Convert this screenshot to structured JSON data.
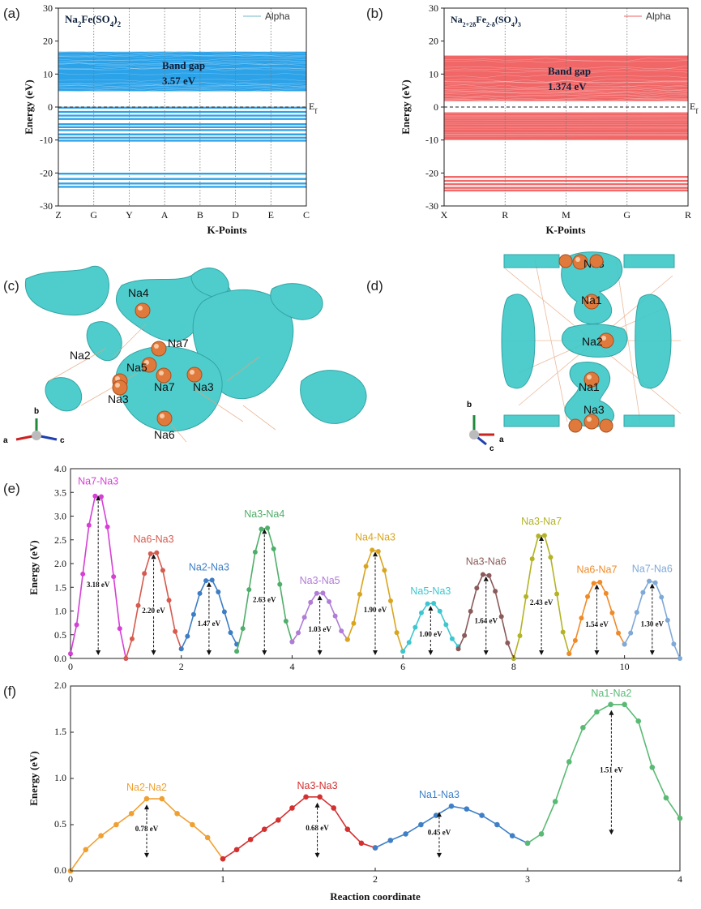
{
  "panels": {
    "a": "(a)",
    "b": "(b)",
    "c": "(c)",
    "d": "(d)",
    "e": "(e)",
    "f": "(f)"
  },
  "chart_data": [
    {
      "id": "a",
      "type": "line",
      "title_parts": [
        "Na",
        "2",
        "Fe(SO",
        "4",
        ")",
        "2"
      ],
      "legend": "Alpha",
      "color": "#1a9ae6",
      "xlabel": "K-Points",
      "ylabel": "Energy (eV)",
      "ylim": [
        -30,
        30
      ],
      "yticks": [
        -30,
        -20,
        -10,
        0,
        10,
        20,
        30
      ],
      "kpoints": [
        "Z",
        "G",
        "Y",
        "A",
        "B",
        "D",
        "E",
        "C"
      ],
      "fermi_label": "E",
      "fermi_sub": "f",
      "annotation": [
        "Band gap",
        "3.57 eV"
      ],
      "conduction_band": [
        4.8,
        16.8
      ],
      "valence_lines": [
        -0.2,
        -1.5,
        -2.6,
        -3.6,
        -5.2,
        -6.1,
        -7.0,
        -8.3,
        -9.3,
        -10.2,
        -20.2,
        -21.8,
        -23.2,
        -24.2
      ],
      "bandgap_eV": 3.57
    },
    {
      "id": "b",
      "type": "line",
      "title_parts": [
        "Na",
        "2+2δ",
        "Fe",
        "2-δ",
        "(SO",
        "4",
        ")",
        "3"
      ],
      "legend": "Alpha",
      "color": "#f05a5a",
      "xlabel": "K-Points",
      "ylabel": "Energy (eV)",
      "ylim": [
        -30,
        30
      ],
      "yticks": [
        -30,
        -20,
        -10,
        0,
        10,
        20,
        30
      ],
      "kpoints": [
        "X",
        "R",
        "M",
        "G",
        "R"
      ],
      "fermi_label": "E",
      "fermi_sub": "f",
      "annotation": [
        "Band gap",
        "1.374 eV"
      ],
      "conduction_band": [
        1.8,
        15.6
      ],
      "valence_band": [
        -10.0,
        -1.6
      ],
      "valence_lines": [
        -21.2,
        -22.4,
        -23.4,
        -24.5,
        -25.3
      ],
      "bandgap_eV": 1.374
    },
    {
      "id": "e",
      "type": "line",
      "xlabel": "",
      "ylabel": "Energy  (eV)",
      "xlim": [
        0,
        11
      ],
      "ylim": [
        0,
        4.0
      ],
      "xticks": [
        0,
        2,
        4,
        6,
        8,
        10
      ],
      "yticks": [
        0.0,
        0.5,
        1.0,
        1.5,
        2.0,
        2.5,
        3.0,
        3.5,
        4.0
      ],
      "series": [
        {
          "name": "Na7-Na3",
          "barrier": "3.18 eV",
          "peak": 3.5,
          "start": 0.1,
          "end": 0.0,
          "color": "#d63fd6"
        },
        {
          "name": "Na6-Na3",
          "barrier": "2.20 eV",
          "peak": 2.27,
          "start": 0.0,
          "end": 0.2,
          "color": "#d65a4e"
        },
        {
          "name": "Na2-Na3",
          "barrier": "1.47 eV",
          "peak": 1.68,
          "start": 0.2,
          "end": 0.3,
          "color": "#3d7dc4"
        },
        {
          "name": "Na3-Na4",
          "barrier": "2.63 eV",
          "peak": 2.8,
          "start": 0.15,
          "end": 0.35,
          "color": "#4fae6a"
        },
        {
          "name": "Na3-Na5",
          "barrier": "1.03 eV",
          "peak": 1.4,
          "start": 0.35,
          "end": 0.4,
          "color": "#b07cd6"
        },
        {
          "name": "Na4-Na3",
          "barrier": "1.90 eV",
          "peak": 2.32,
          "start": 0.4,
          "end": 0.15,
          "color": "#d9a520"
        },
        {
          "name": "Na5-Na3",
          "barrier": "1.00 eV",
          "peak": 1.18,
          "start": 0.15,
          "end": 0.25,
          "color": "#3ec6cf"
        },
        {
          "name": "Na3-Na6",
          "barrier": "1.64 eV",
          "peak": 1.8,
          "start": 0.2,
          "end": 0.0,
          "color": "#8b5a5a"
        },
        {
          "name": "Na3-Na7",
          "barrier": "2.43 eV",
          "peak": 2.65,
          "start": 0.0,
          "end": 0.1,
          "color": "#b3b325"
        },
        {
          "name": "Na6-Na7",
          "barrier": "1.54 eV",
          "peak": 1.63,
          "start": 0.1,
          "end": 0.3,
          "color": "#f08a28"
        },
        {
          "name": "Na7-Na6",
          "barrier": "1.30 eV",
          "peak": 1.65,
          "start": 0.3,
          "end": 0.0,
          "color": "#7fa9d6"
        }
      ]
    },
    {
      "id": "f",
      "type": "line",
      "xlabel": "Reaction coordinate",
      "ylabel": "Energy  (eV)",
      "xlim": [
        0,
        4
      ],
      "ylim": [
        0,
        2.0
      ],
      "xticks": [
        0,
        1,
        2,
        3,
        4
      ],
      "yticks": [
        "0.0",
        "0.5",
        "1.0",
        "1.5",
        "2.0"
      ],
      "series": [
        {
          "name": "Na2-Na2",
          "barrier": "0.78 eV",
          "color": "#f0a030",
          "y": [
            0.0,
            0.23,
            0.38,
            0.5,
            0.62,
            0.78,
            0.78,
            0.62,
            0.5,
            0.36,
            0.13
          ]
        },
        {
          "name": "Na3-Na3",
          "barrier": "0.68 eV",
          "color": "#d33030",
          "y": [
            0.13,
            0.23,
            0.34,
            0.45,
            0.55,
            0.68,
            0.8,
            0.8,
            0.68,
            0.45,
            0.3,
            0.25
          ]
        },
        {
          "name": "Na1-Na3",
          "barrier": "0.45 eV",
          "color": "#3f7fc6",
          "y": [
            0.25,
            0.33,
            0.4,
            0.5,
            0.6,
            0.7,
            0.67,
            0.6,
            0.5,
            0.38,
            0.3
          ]
        },
        {
          "name": "Na1-Na2",
          "barrier": "1.51 eV",
          "color": "#5aba74",
          "y": [
            0.3,
            0.4,
            0.75,
            1.18,
            1.55,
            1.72,
            1.8,
            1.8,
            1.62,
            1.12,
            0.79,
            0.57
          ]
        }
      ]
    }
  ],
  "structures": {
    "c": {
      "labels": [
        "Na4",
        "Na7",
        "Na2",
        "Na5",
        "Na7",
        "Na3",
        "Na3",
        "Na6"
      ],
      "axes": [
        "a",
        "b",
        "c"
      ]
    },
    "d": {
      "labels": [
        "Na3",
        "Na1",
        "Na2",
        "Na1",
        "Na3"
      ],
      "axes": [
        "b",
        "c",
        "a"
      ]
    }
  }
}
